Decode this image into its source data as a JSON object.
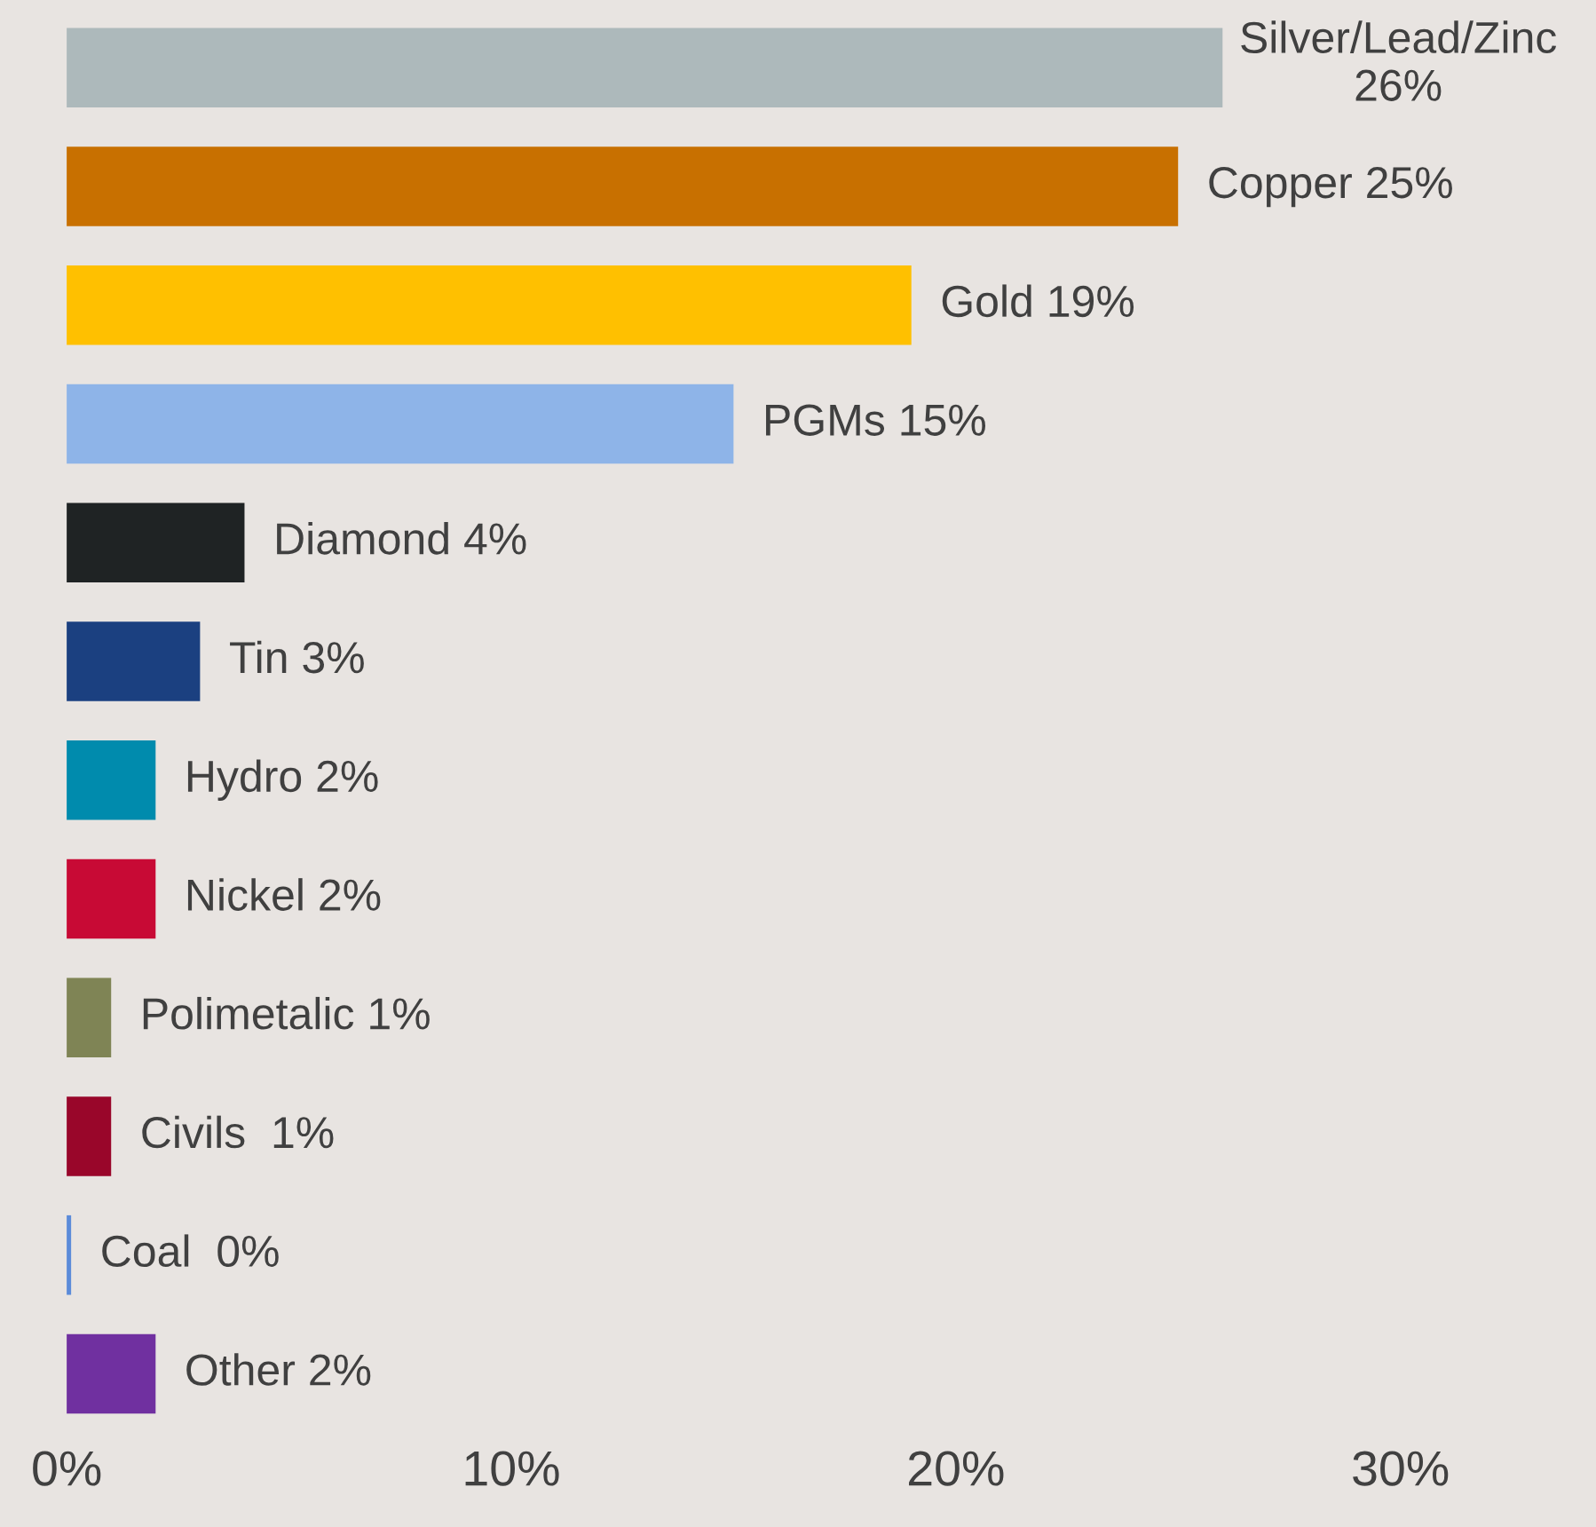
{
  "chart_data": {
    "type": "bar",
    "orientation": "horizontal",
    "categories": [
      null,
      null,
      null,
      null,
      null,
      null,
      null,
      null,
      null,
      null,
      null,
      null
    ],
    "values": [
      26,
      25,
      19,
      15,
      4,
      3,
      2,
      2,
      1,
      1,
      0.1,
      2
    ],
    "colors": [
      "#adb9bb",
      "#c87000",
      "#ffc000",
      "#8eb4e8",
      "#1f2324",
      "#1b4080",
      "#008bad",
      "#c80a35",
      "#7f8455",
      "#99062a",
      "#5b8bd9",
      "#7030a0"
    ],
    "value_labels": [
      "Silver/Lead/Zinc\n26%",
      "Copper 25%",
      "Gold 19%",
      "PGMs 15%",
      "Diamond 4%",
      "Tin 3%",
      "Hydro 2%",
      "Nickel 2%",
      "Polimetalic 1%",
      "Civils  1%",
      "Coal  0%",
      "Other 2%"
    ],
    "xlim": [
      -1.5,
      34.4
    ],
    "xticks": [
      {
        "value": 0,
        "label": "0%"
      },
      {
        "value": 10,
        "label": "10%"
      },
      {
        "value": 20,
        "label": "20%"
      },
      {
        "value": 30,
        "label": "30%"
      }
    ],
    "tick_labels": "x",
    "grid": false,
    "legend": false
  }
}
